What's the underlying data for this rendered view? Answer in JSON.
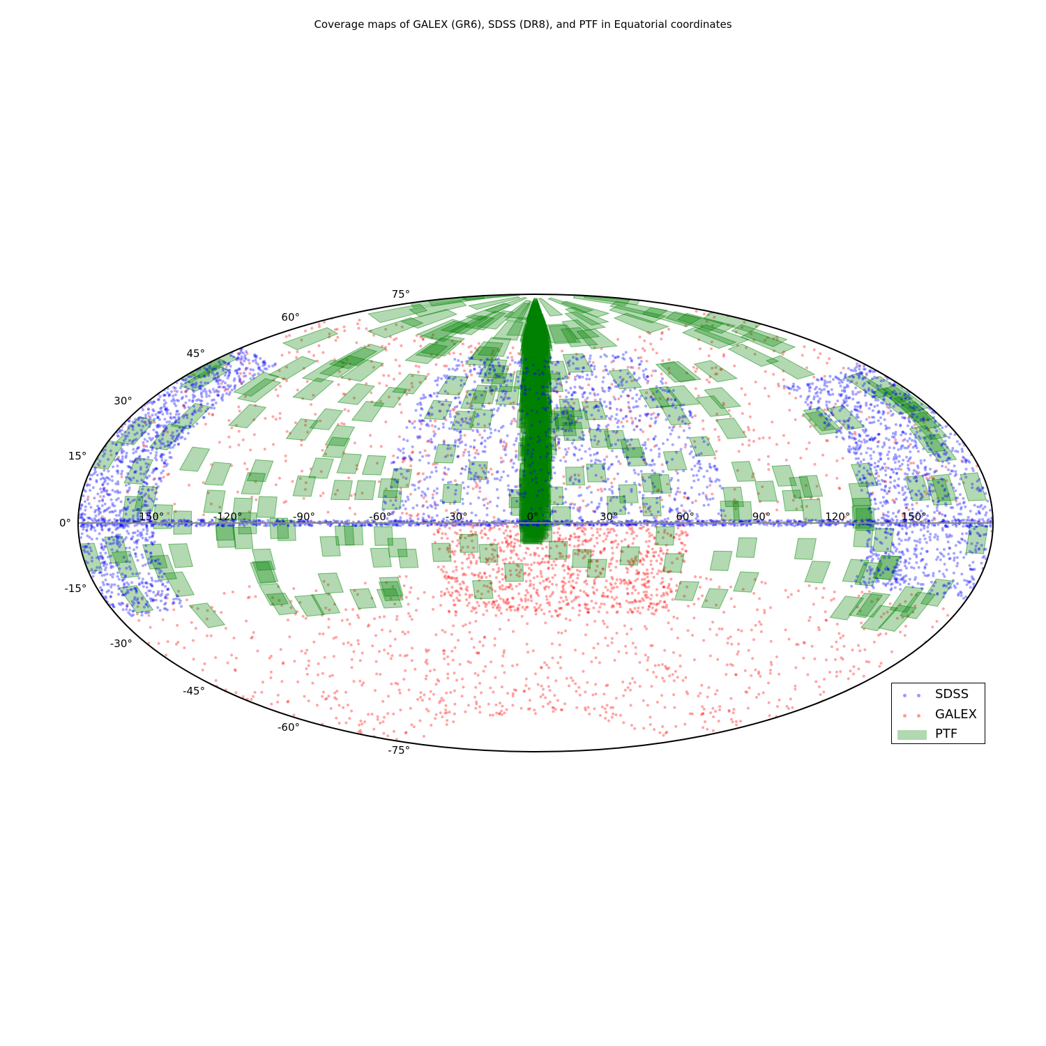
{
  "title": "Coverage maps of GALEX (GR6), SDSS (DR8), and PTF in Equatorial coordinates",
  "projection": "aitoff",
  "grid": false,
  "legend_placement": "lower-right",
  "colors": {
    "SDSS": "#0000ff",
    "GALEX": "#ff0000",
    "PTF": "#008000",
    "equator": "#888888"
  },
  "lon_ticks": [
    "150°",
    "-120°",
    "-90°",
    "-60°",
    "-30°",
    "0°",
    "30°",
    "60°",
    "90°",
    "120°",
    "150°"
  ],
  "lat_ticks": [
    "75°",
    "60°",
    "45°",
    "30°",
    "15°",
    "0°",
    "-15°",
    "-30°",
    "-45°",
    "-60°",
    "-75°"
  ],
  "legend": [
    {
      "name": "SDSS",
      "marker": "dots"
    },
    {
      "name": "GALEX",
      "marker": "dots"
    },
    {
      "name": "PTF",
      "marker": "patch"
    }
  ],
  "chart_data": {
    "type": "scatter",
    "title": "Coverage maps of GALEX (GR6), SDSS (DR8), and PTF in Equatorial coordinates",
    "x_range": [
      -180,
      180
    ],
    "y_range": [
      -90,
      90
    ],
    "series": [
      {
        "name": "SDSS",
        "regions": [
          {
            "lon": [
              -60,
              75
            ],
            "lat": [
              0,
              65
            ]
          },
          {
            "lon": [
              -180,
              -150
            ],
            "lat": [
              -25,
              50
            ]
          },
          {
            "lon": [
              130,
              180
            ],
            "lat": [
              -20,
              45
            ]
          },
          {
            "lon": [
              -180,
              180
            ],
            "lat": [
              -1,
              1
            ]
          }
        ]
      },
      {
        "name": "GALEX",
        "regions": [
          {
            "lon": [
              -180,
              180
            ],
            "lat": [
              -75,
              -20
            ]
          },
          {
            "lon": [
              -40,
              60
            ],
            "lat": [
              -35,
              0
            ]
          },
          {
            "lon": [
              -180,
              180
            ],
            "lat": [
              0,
              70
            ]
          }
        ]
      },
      {
        "name": "PTF",
        "regions": [
          {
            "lon": [
              -180,
              180
            ],
            "lat": [
              -30,
              85
            ]
          },
          {
            "lon": [
              -3,
              3
            ],
            "lat": [
              -5,
              85
            ]
          }
        ]
      }
    ]
  }
}
